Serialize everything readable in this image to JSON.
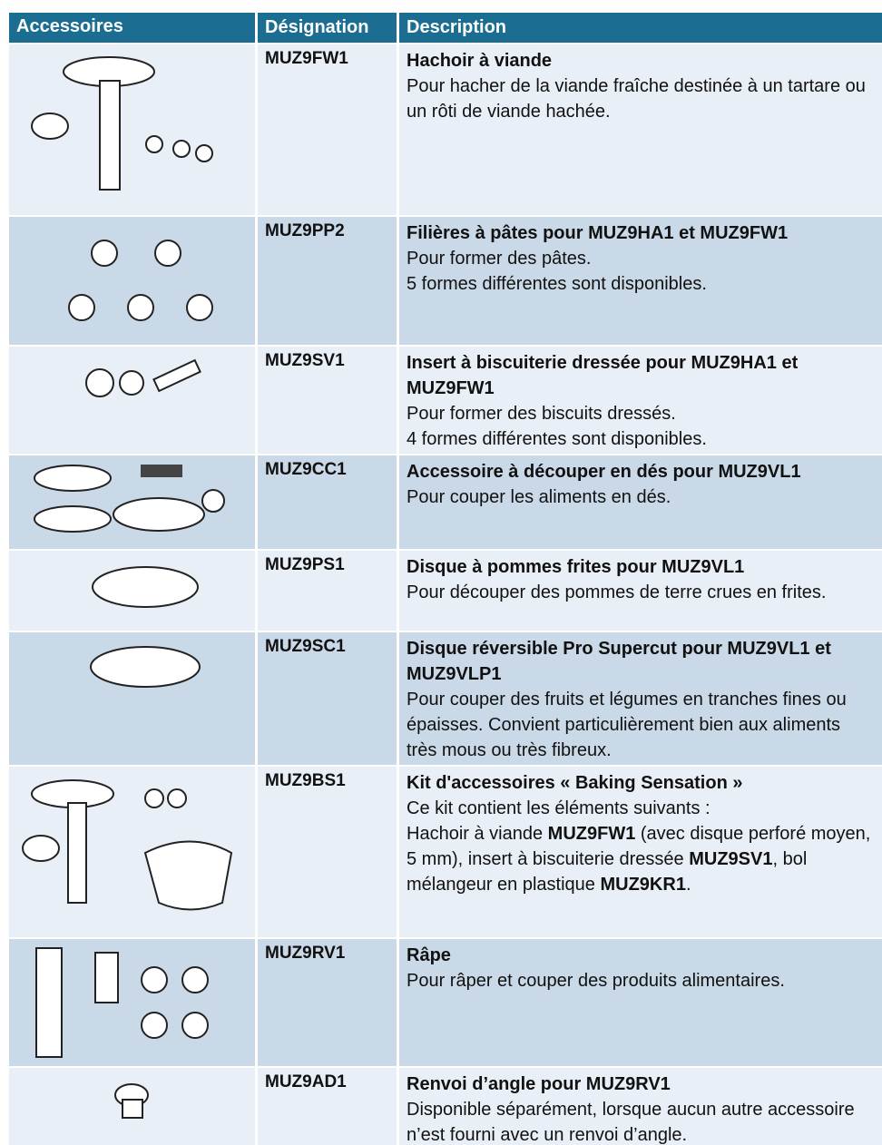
{
  "header": {
    "accessories": "Accessoires",
    "designation": "Désignation",
    "description": "Description"
  },
  "rows": [
    {
      "designation": "MUZ9FW1",
      "title": "Hachoir à viande",
      "text": [
        "Pour hacher de la viande fraîche destinée à un tartare ou un rôti de viande hachée."
      ]
    },
    {
      "designation": "MUZ9PP2",
      "title": "Filières à pâtes pour MUZ9HA1 et MUZ9FW1",
      "text": [
        "Pour former des pâtes.",
        "5 formes différentes sont disponibles."
      ]
    },
    {
      "designation": "MUZ9SV1",
      "title": "Insert à biscuiterie dressée pour MUZ9HA1 et MUZ9FW1",
      "text": [
        "Pour former des biscuits dressés.",
        "4 formes différentes sont disponibles."
      ]
    },
    {
      "designation": "MUZ9CC1",
      "title": "Accessoire à découper en dés pour MUZ9VL1",
      "text": [
        "Pour couper les aliments en dés."
      ]
    },
    {
      "designation": "MUZ9PS1",
      "title": "Disque à pommes frites pour MUZ9VL1",
      "text": [
        "Pour découper des pommes de terre crues en frites."
      ]
    },
    {
      "designation": "MUZ9SC1",
      "title": "Disque réversible Pro Supercut pour MUZ9VL1 et MUZ9VLP1",
      "text": [
        "Pour couper des fruits et légumes en tranches fines ou épaisses. Convient particulièrement bien aux aliments très mous ou très fibreux."
      ]
    },
    {
      "designation": "MUZ9BS1",
      "title": "Kit d'accessoires « Baking Sensation »",
      "text": [
        "Ce kit contient les éléments suivants :",
        [
          {
            "text": "Hachoir à viande ",
            "bold": false
          },
          {
            "text": "MUZ9FW1",
            "bold": true
          },
          {
            "text": " (avec disque perforé moyen, 5 mm), insert à biscuiterie dressée ",
            "bold": false
          },
          {
            "text": "MUZ9SV1",
            "bold": true
          },
          {
            "text": ", bol mélangeur en plastique ",
            "bold": false
          },
          {
            "text": "MUZ9KR1",
            "bold": true
          },
          {
            "text": ".",
            "bold": false
          }
        ]
      ]
    },
    {
      "designation": "MUZ9RV1",
      "title": "Râpe",
      "text": [
        "Pour râper et couper des produits alimentaires."
      ]
    },
    {
      "designation": "MUZ9AD1",
      "title": "Renvoi d’angle pour MUZ9RV1",
      "text": [
        "Disponible séparément, lorsque aucun autre accessoire n’est fourni avec un renvoi d’angle."
      ]
    }
  ]
}
